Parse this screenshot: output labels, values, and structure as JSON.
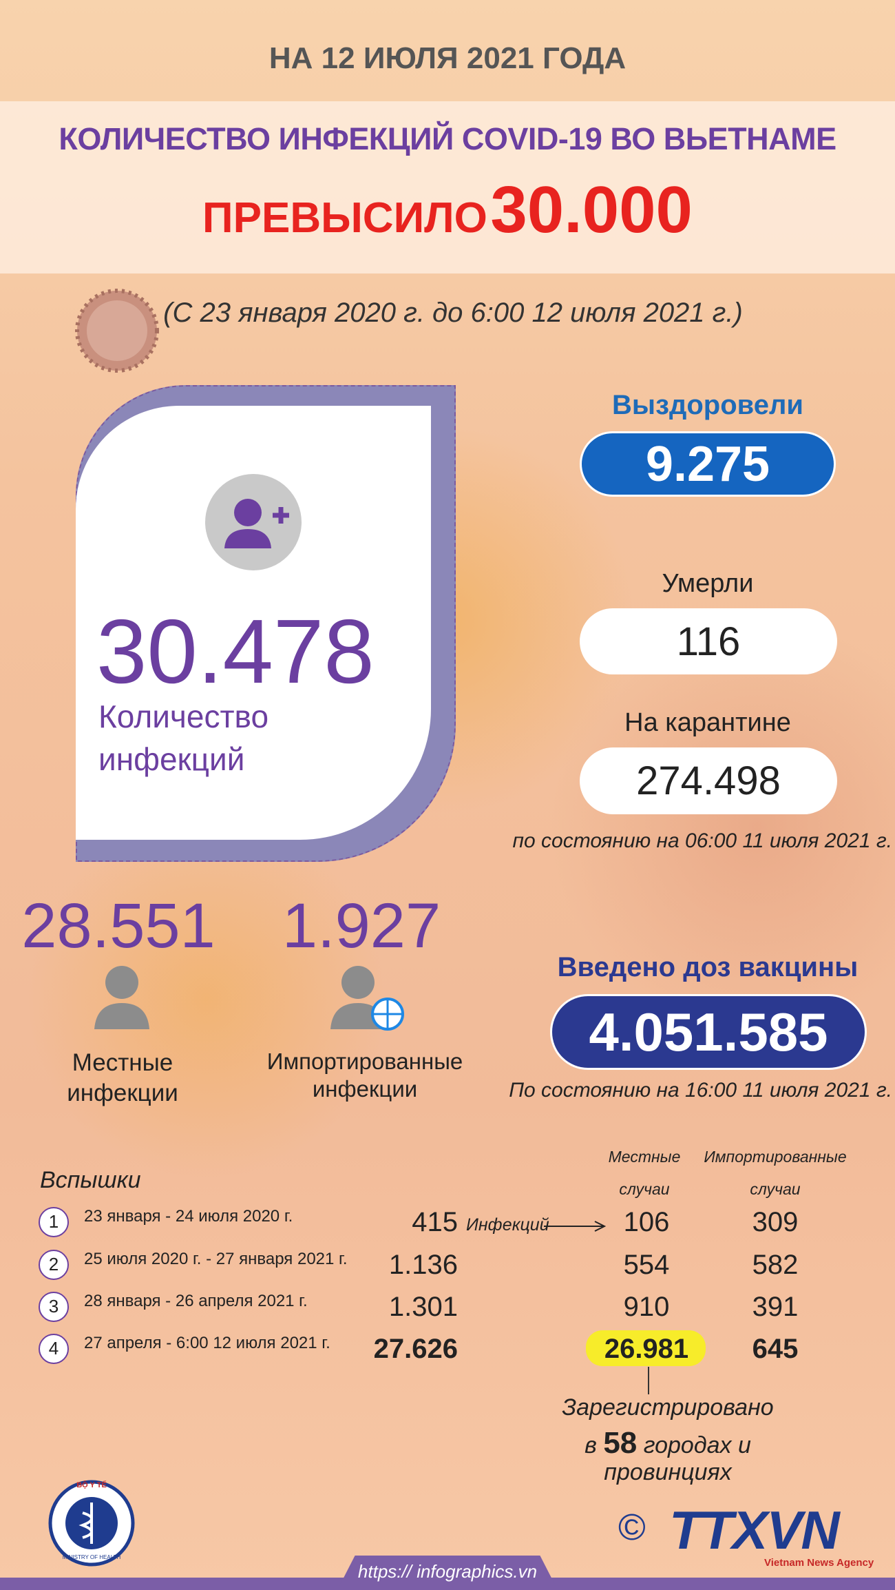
{
  "header": {
    "date": "НА 12 ИЮЛЯ 2021 ГОДА",
    "title": "КОЛИЧЕСТВО ИНФЕКЦИЙ COVID-19 ВО ВЬЕТНАМЕ",
    "subtitle_prefix": "ПРЕВЫСИЛО",
    "subtitle_number": "30.000",
    "period": "(С 23 января 2020 г. до 6:00 12 июля 2021 г.)"
  },
  "total": {
    "value": "30.478",
    "label_line1": "Количество",
    "label_line2": "инфекций"
  },
  "stats": [
    {
      "label": "Выздоровели",
      "value": "9.275"
    },
    {
      "label": "Умерли",
      "value": "116"
    },
    {
      "label": "На карантине",
      "value": "274.498"
    }
  ],
  "stats_note": "по состоянию на 06:00 11 июля 2021 г.",
  "breakdown": [
    {
      "value": "28.551",
      "label_line1": "Местные",
      "label_line2": "инфекции"
    },
    {
      "value": "1.927",
      "label_line1": "Импортированные",
      "label_line2": "инфекции"
    }
  ],
  "vaccine": {
    "label": "Введено доз вакцины",
    "value": "4.051.585",
    "note": "По состоянию на 16:00 11 июля 2021 г."
  },
  "outbreaks": {
    "title": "Вспышки",
    "col_local_line1": "Местные",
    "col_local_line2": "случаи",
    "col_imported_line1": "Импортированные",
    "col_imported_line2": "случаи",
    "arrow_label": "Инфекций",
    "rows": [
      {
        "num": "1",
        "period": "23 января - 24 июля 2020 г.",
        "total": "415",
        "local": "106",
        "imported": "309"
      },
      {
        "num": "2",
        "period": "25 июля 2020 г. - 27 января 2021 г.",
        "total": "1.136",
        "local": "554",
        "imported": "582"
      },
      {
        "num": "3",
        "period": "28 января - 26 апреля 2021 г.",
        "total": "1.301",
        "local": "910",
        "imported": "391"
      },
      {
        "num": "4",
        "period": "27 апреля - 6:00 12 июля 2021 г.",
        "total": "27.626",
        "local": "26.981",
        "imported": "645"
      }
    ]
  },
  "note": {
    "line1": "Зарегистрировано",
    "line2_prefix": "в",
    "line2_number": "58",
    "line2_suffix": "городах и",
    "line3": "провинциях"
  },
  "footer": {
    "logo_top": "BỘ Y TẾ",
    "logo_bottom": "MINISTRY OF HEALTH",
    "url": "https:// infographics.vn",
    "copyright": "©",
    "agency": "TTXVN",
    "agency_sub": "Vietnam News Agency"
  }
}
